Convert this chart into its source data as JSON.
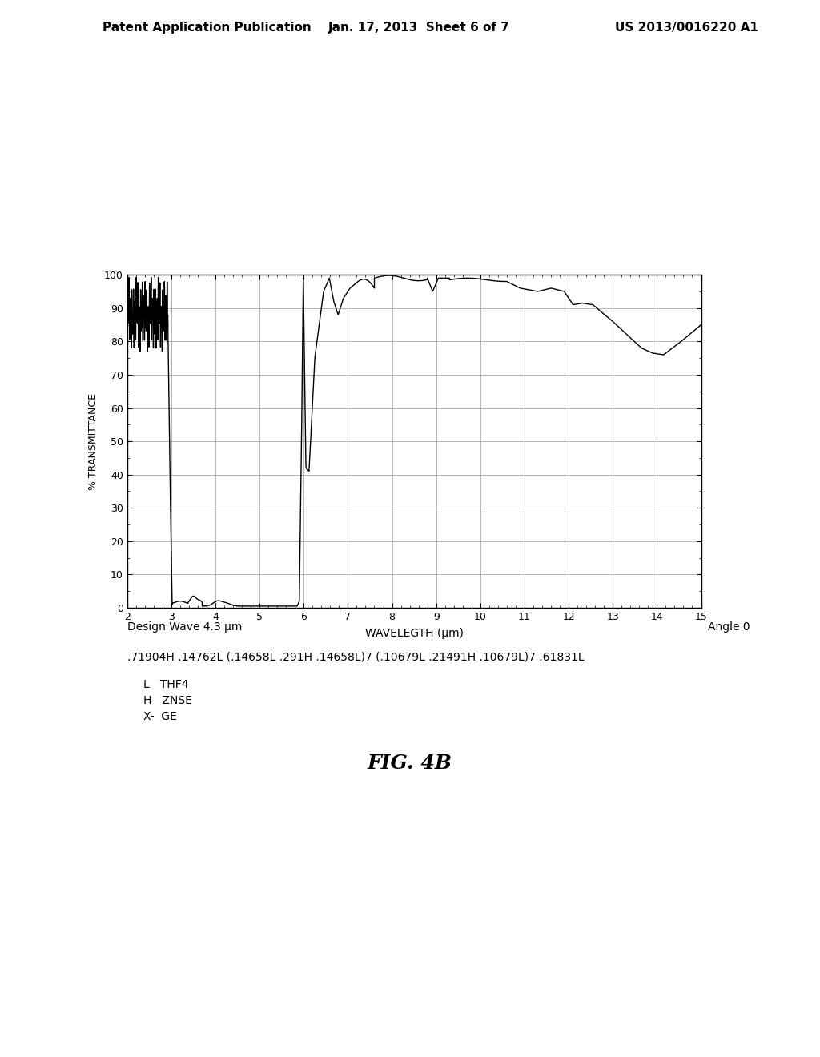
{
  "title_header": "Patent Application Publication",
  "title_date": "Jan. 17, 2013",
  "title_sheet": "Sheet 6 of 7",
  "title_patent": "US 2013/0016220 A1",
  "xlabel": "WAVELEGTH (μm)",
  "ylabel": "% TRANSMITTANCE",
  "xlim": [
    2,
    15
  ],
  "ylim": [
    0,
    100
  ],
  "xticks": [
    2,
    3,
    4,
    5,
    6,
    7,
    8,
    9,
    10,
    11,
    12,
    13,
    14,
    15
  ],
  "yticks": [
    0,
    10,
    20,
    30,
    40,
    50,
    60,
    70,
    80,
    90,
    100
  ],
  "design_wave_text": "Design Wave 4.3 μm",
  "angle_text": "Angle 0",
  "formula_text": ".71904H .14762L (.14658L .291H .14658L)7 (.10679L .21491H .10679L)7 .61831L",
  "legend_lines": [
    "L   THF4",
    "H   ZNSE",
    "X-  GE"
  ],
  "fig_label": "FIG. 4B",
  "line_color": "#000000",
  "bg_color": "#ffffff",
  "grid_color": "#999999"
}
